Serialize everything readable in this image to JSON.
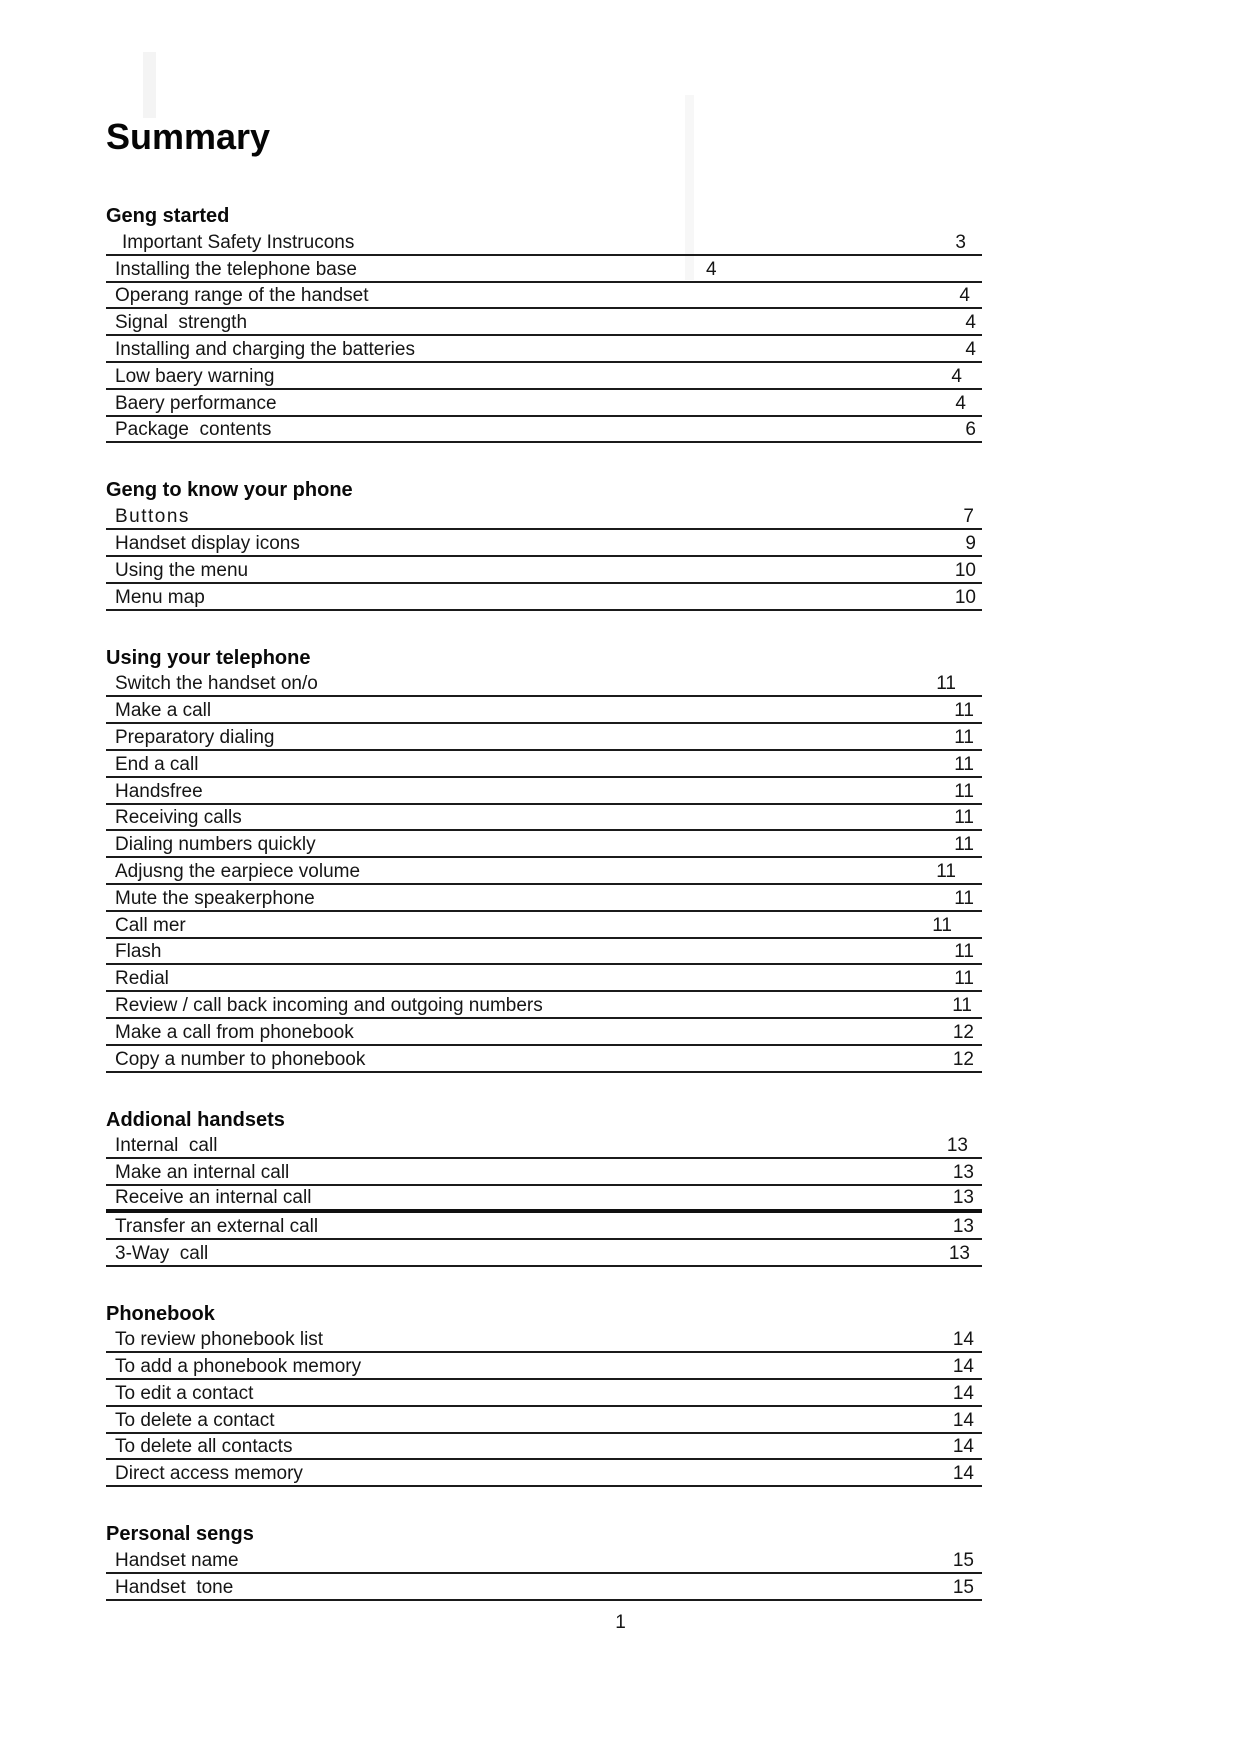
{
  "document": {
    "title": "Summary",
    "footer_page_number": "1"
  },
  "toc": {
    "sections": [
      {
        "heading": "Geng started",
        "entries": [
          {
            "label": "Important Safety Instrucons",
            "page": "3",
            "inset": 16,
            "indent": 16
          },
          {
            "label": "Installing the telephone base",
            "page": "4",
            "mid": 600
          },
          {
            "label": "Operang range of the handset",
            "page": "4",
            "inset": 12
          },
          {
            "label": "Signal  strength",
            "page": "4",
            "inset": 6
          },
          {
            "label": "Installing and charging the batteries",
            "page": "4",
            "inset": 6
          },
          {
            "label": "Low baery warning",
            "page": "4",
            "inset": 20
          },
          {
            "label": "Baery performance",
            "page": "4",
            "inset": 16
          },
          {
            "label": "Package  contents",
            "page": "6",
            "inset": 6
          }
        ]
      },
      {
        "heading": "Geng to know your phone",
        "entries": [
          {
            "label": "Buttons",
            "page": "7",
            "inset": 8,
            "spaced": true
          },
          {
            "label": "Handset display icons",
            "page": "9",
            "inset": 6
          },
          {
            "label": "Using the menu",
            "page": "10",
            "inset": 6
          },
          {
            "label": "Menu map",
            "page": "10",
            "inset": 6
          }
        ]
      },
      {
        "heading": "Using your telephone",
        "entries": [
          {
            "label": "Switch the handset on/o",
            "page": "11",
            "inset": 26
          },
          {
            "label": "Make a call",
            "page": "11",
            "inset": 8
          },
          {
            "label": "Preparatory dialing",
            "page": "11",
            "inset": 8
          },
          {
            "label": "End a call",
            "page": "11",
            "inset": 8
          },
          {
            "label": "Handsfree",
            "page": "11",
            "inset": 8
          },
          {
            "label": "Receiving calls",
            "page": "11",
            "inset": 8
          },
          {
            "label": "Dialing numbers quickly",
            "page": "11",
            "inset": 8
          },
          {
            "label": "Adjusng the earpiece volume",
            "page": "11",
            "inset": 26
          },
          {
            "label": "Mute the speakerphone",
            "page": "11",
            "inset": 8
          },
          {
            "label": "Call mer",
            "page": "11",
            "inset": 30
          },
          {
            "label": "Flash",
            "page": "11",
            "inset": 8
          },
          {
            "label": "Redial",
            "page": "11",
            "inset": 8
          },
          {
            "label": "Review / call back incoming and outgoing numbers",
            "page": "11",
            "inset": 10
          },
          {
            "label": "Make a call from phonebook",
            "page": "12",
            "inset": 8
          },
          {
            "label": "Copy a number to phonebook",
            "page": "12",
            "inset": 8
          }
        ]
      },
      {
        "heading": "Addional handsets",
        "entries": [
          {
            "label": "Internal  call",
            "page": "13",
            "inset": 14
          },
          {
            "label": "Make an internal call",
            "page": "13",
            "inset": 8
          },
          {
            "label": "Receive an internal call",
            "page": "13",
            "inset": 8,
            "thick": true
          },
          {
            "label": "Transfer an external call",
            "page": "13",
            "inset": 8
          },
          {
            "label": "3-Way  call",
            "page": "13",
            "inset": 12
          }
        ]
      },
      {
        "heading": "Phonebook",
        "entries": [
          {
            "label": "To review phonebook list",
            "page": "14",
            "inset": 8
          },
          {
            "label": "To add a phonebook memory",
            "page": "14",
            "inset": 8
          },
          {
            "label": "To edit a contact",
            "page": "14",
            "inset": 8
          },
          {
            "label": "To delete a contact",
            "page": "14",
            "inset": 8
          },
          {
            "label": "To delete all contacts",
            "page": "14",
            "inset": 8
          },
          {
            "label": "Direct access memory",
            "page": "14",
            "inset": 8
          }
        ]
      },
      {
        "heading": "Personal sengs",
        "entries": [
          {
            "label": "Handset name",
            "page": "15",
            "inset": 8
          },
          {
            "label": "Handset  tone",
            "page": "15",
            "inset": 8
          }
        ]
      }
    ]
  }
}
